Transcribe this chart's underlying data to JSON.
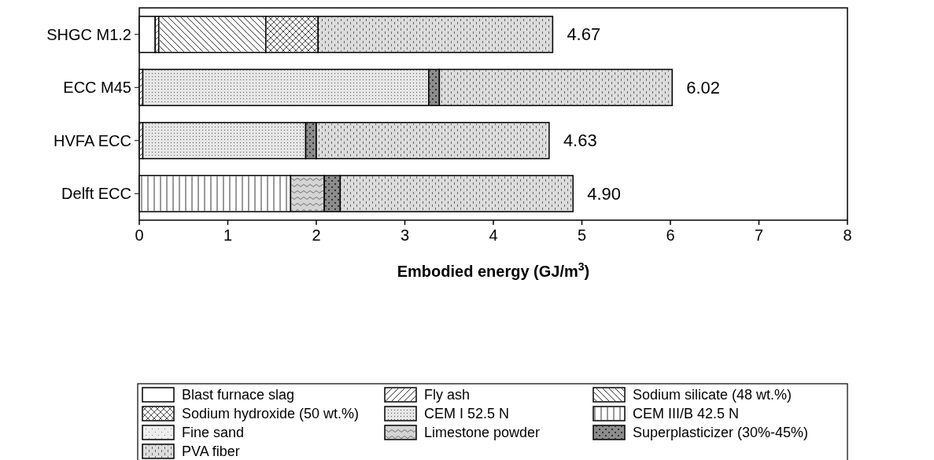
{
  "chart_data": {
    "type": "bar",
    "orientation": "horizontal",
    "stacked": true,
    "xlabel": "Embodied energy (GJ/m$^{3}$)",
    "categories": [
      "SHGC M1.2",
      "ECC M45",
      "HVFA ECC",
      "Delft ECC"
    ],
    "xlim": [
      0,
      8
    ],
    "xticks": [
      0,
      1,
      2,
      3,
      4,
      5,
      6,
      7,
      8
    ],
    "legend": "bottom",
    "totals": [
      "4.67",
      "6.02",
      "4.63",
      "4.90"
    ],
    "series": [
      {
        "name": "Blast furnace slag",
        "color": "#ffffff",
        "values": [
          0.18,
          null,
          null,
          null
        ]
      },
      {
        "name": "Fly ash",
        "color": "#ffffff",
        "values": [
          0.04,
          0.04,
          0.04,
          null
        ]
      },
      {
        "name": "Sodium silicate (48 wt.%)",
        "color": "#ffffff",
        "values": [
          1.21,
          null,
          null,
          null
        ]
      },
      {
        "name": "Sodium hydroxide (50 wt.%)",
        "color": "#ffffff",
        "values": [
          0.59,
          null,
          null,
          null
        ]
      },
      {
        "name": "CEM I 52.5 N",
        "color": "#e6e6e6",
        "values": [
          null,
          3.23,
          1.84,
          null
        ]
      },
      {
        "name": "CEM III/B 42.5 N",
        "color": "#ffffff",
        "values": [
          null,
          null,
          null,
          1.71
        ]
      },
      {
        "name": "Fine sand",
        "color": "#eeeeee",
        "values": [
          null,
          null,
          null,
          null
        ]
      },
      {
        "name": "Limestone powder",
        "color": "#d4d4d4",
        "values": [
          null,
          null,
          null,
          0.38
        ]
      },
      {
        "name": "Superplasticizer (30%-45%)",
        "color": "#8c8c8c",
        "values": [
          null,
          0.12,
          0.12,
          0.18
        ]
      },
      {
        "name": "PVA fiber",
        "color": "#dcdcdc",
        "values": [
          2.65,
          2.63,
          2.63,
          2.63
        ]
      }
    ]
  }
}
